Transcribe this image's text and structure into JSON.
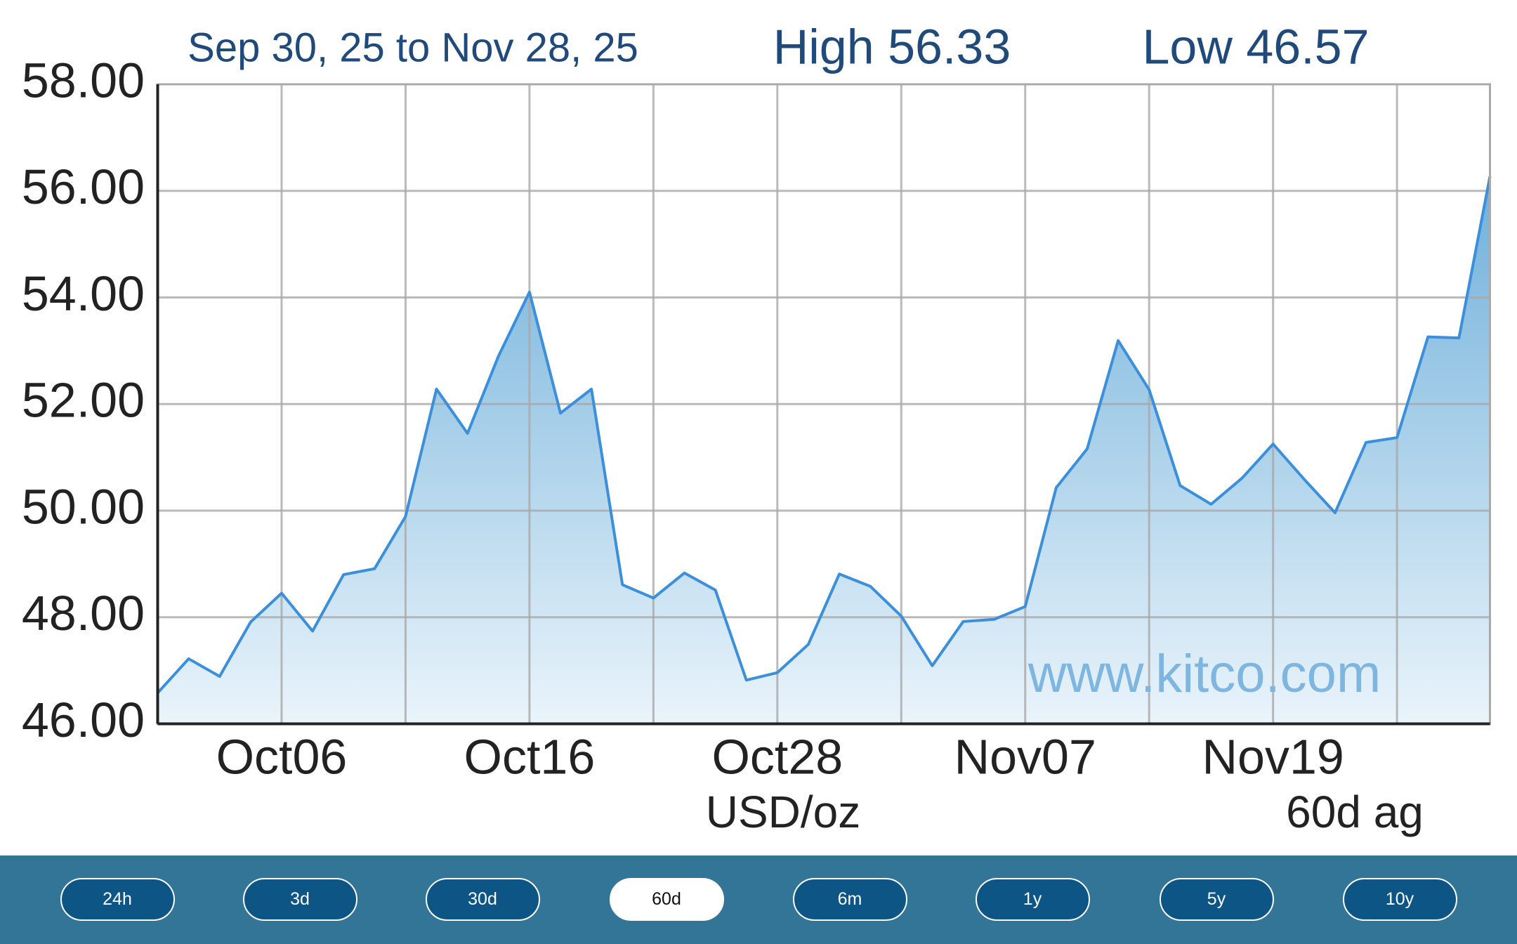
{
  "chart_data": {
    "type": "area",
    "subtitle": "Sep 30, 25 to Nov 28, 25",
    "high_label": "High 56.33",
    "low_label": "Low 46.57",
    "watermark": "www.kitco.com",
    "y_label": "USD/oz",
    "period_label": "60d ag",
    "x": [
      0,
      1,
      2,
      3,
      4,
      5,
      6,
      7,
      8,
      9,
      10,
      11,
      12,
      13,
      14,
      15,
      16,
      17,
      18,
      19,
      20,
      21,
      22,
      23,
      24,
      25,
      26,
      27,
      28,
      29,
      30,
      31,
      32,
      33,
      34,
      35,
      36,
      37,
      38,
      39,
      40,
      41,
      42,
      43
    ],
    "categories": [
      null,
      null,
      null,
      null,
      "Oct06",
      null,
      null,
      null,
      null,
      null,
      null,
      null,
      "Oct16",
      null,
      null,
      null,
      null,
      null,
      null,
      null,
      "Oct28",
      null,
      null,
      null,
      null,
      null,
      null,
      null,
      "Nov07",
      null,
      null,
      null,
      null,
      null,
      null,
      null,
      "Nov19",
      null,
      null,
      null,
      null,
      null,
      null,
      null
    ],
    "values": [
      46.58,
      47.22,
      46.89,
      47.91,
      48.45,
      47.74,
      48.8,
      48.91,
      49.89,
      52.28,
      51.45,
      52.9,
      54.1,
      51.83,
      52.28,
      48.61,
      48.36,
      48.83,
      48.51,
      46.82,
      46.96,
      47.49,
      48.81,
      48.58,
      48.02,
      47.09,
      47.92,
      47.96,
      48.2,
      50.43,
      51.16,
      53.19,
      52.27,
      50.47,
      50.12,
      50.61,
      51.25,
      50.59,
      49.96,
      51.28,
      51.37,
      53.26,
      53.24,
      56.27
    ],
    "color": "#3b8fdb",
    "xlim": [
      0,
      43
    ],
    "ylim": [
      46,
      58
    ],
    "yticks": [
      {
        "value": 46,
        "label": "46.00"
      },
      {
        "value": 48,
        "label": "48.00"
      },
      {
        "value": 50,
        "label": "50.00"
      },
      {
        "value": 52,
        "label": "52.00"
      },
      {
        "value": 54,
        "label": "54.00"
      },
      {
        "value": 56,
        "label": "56.00"
      },
      {
        "value": 58,
        "label": "58.00"
      }
    ],
    "grid": true
  },
  "buttons": [
    "24h",
    "3d",
    "30d",
    "60d",
    "6m",
    "1y",
    "5y",
    "10y"
  ],
  "active_button": 3
}
